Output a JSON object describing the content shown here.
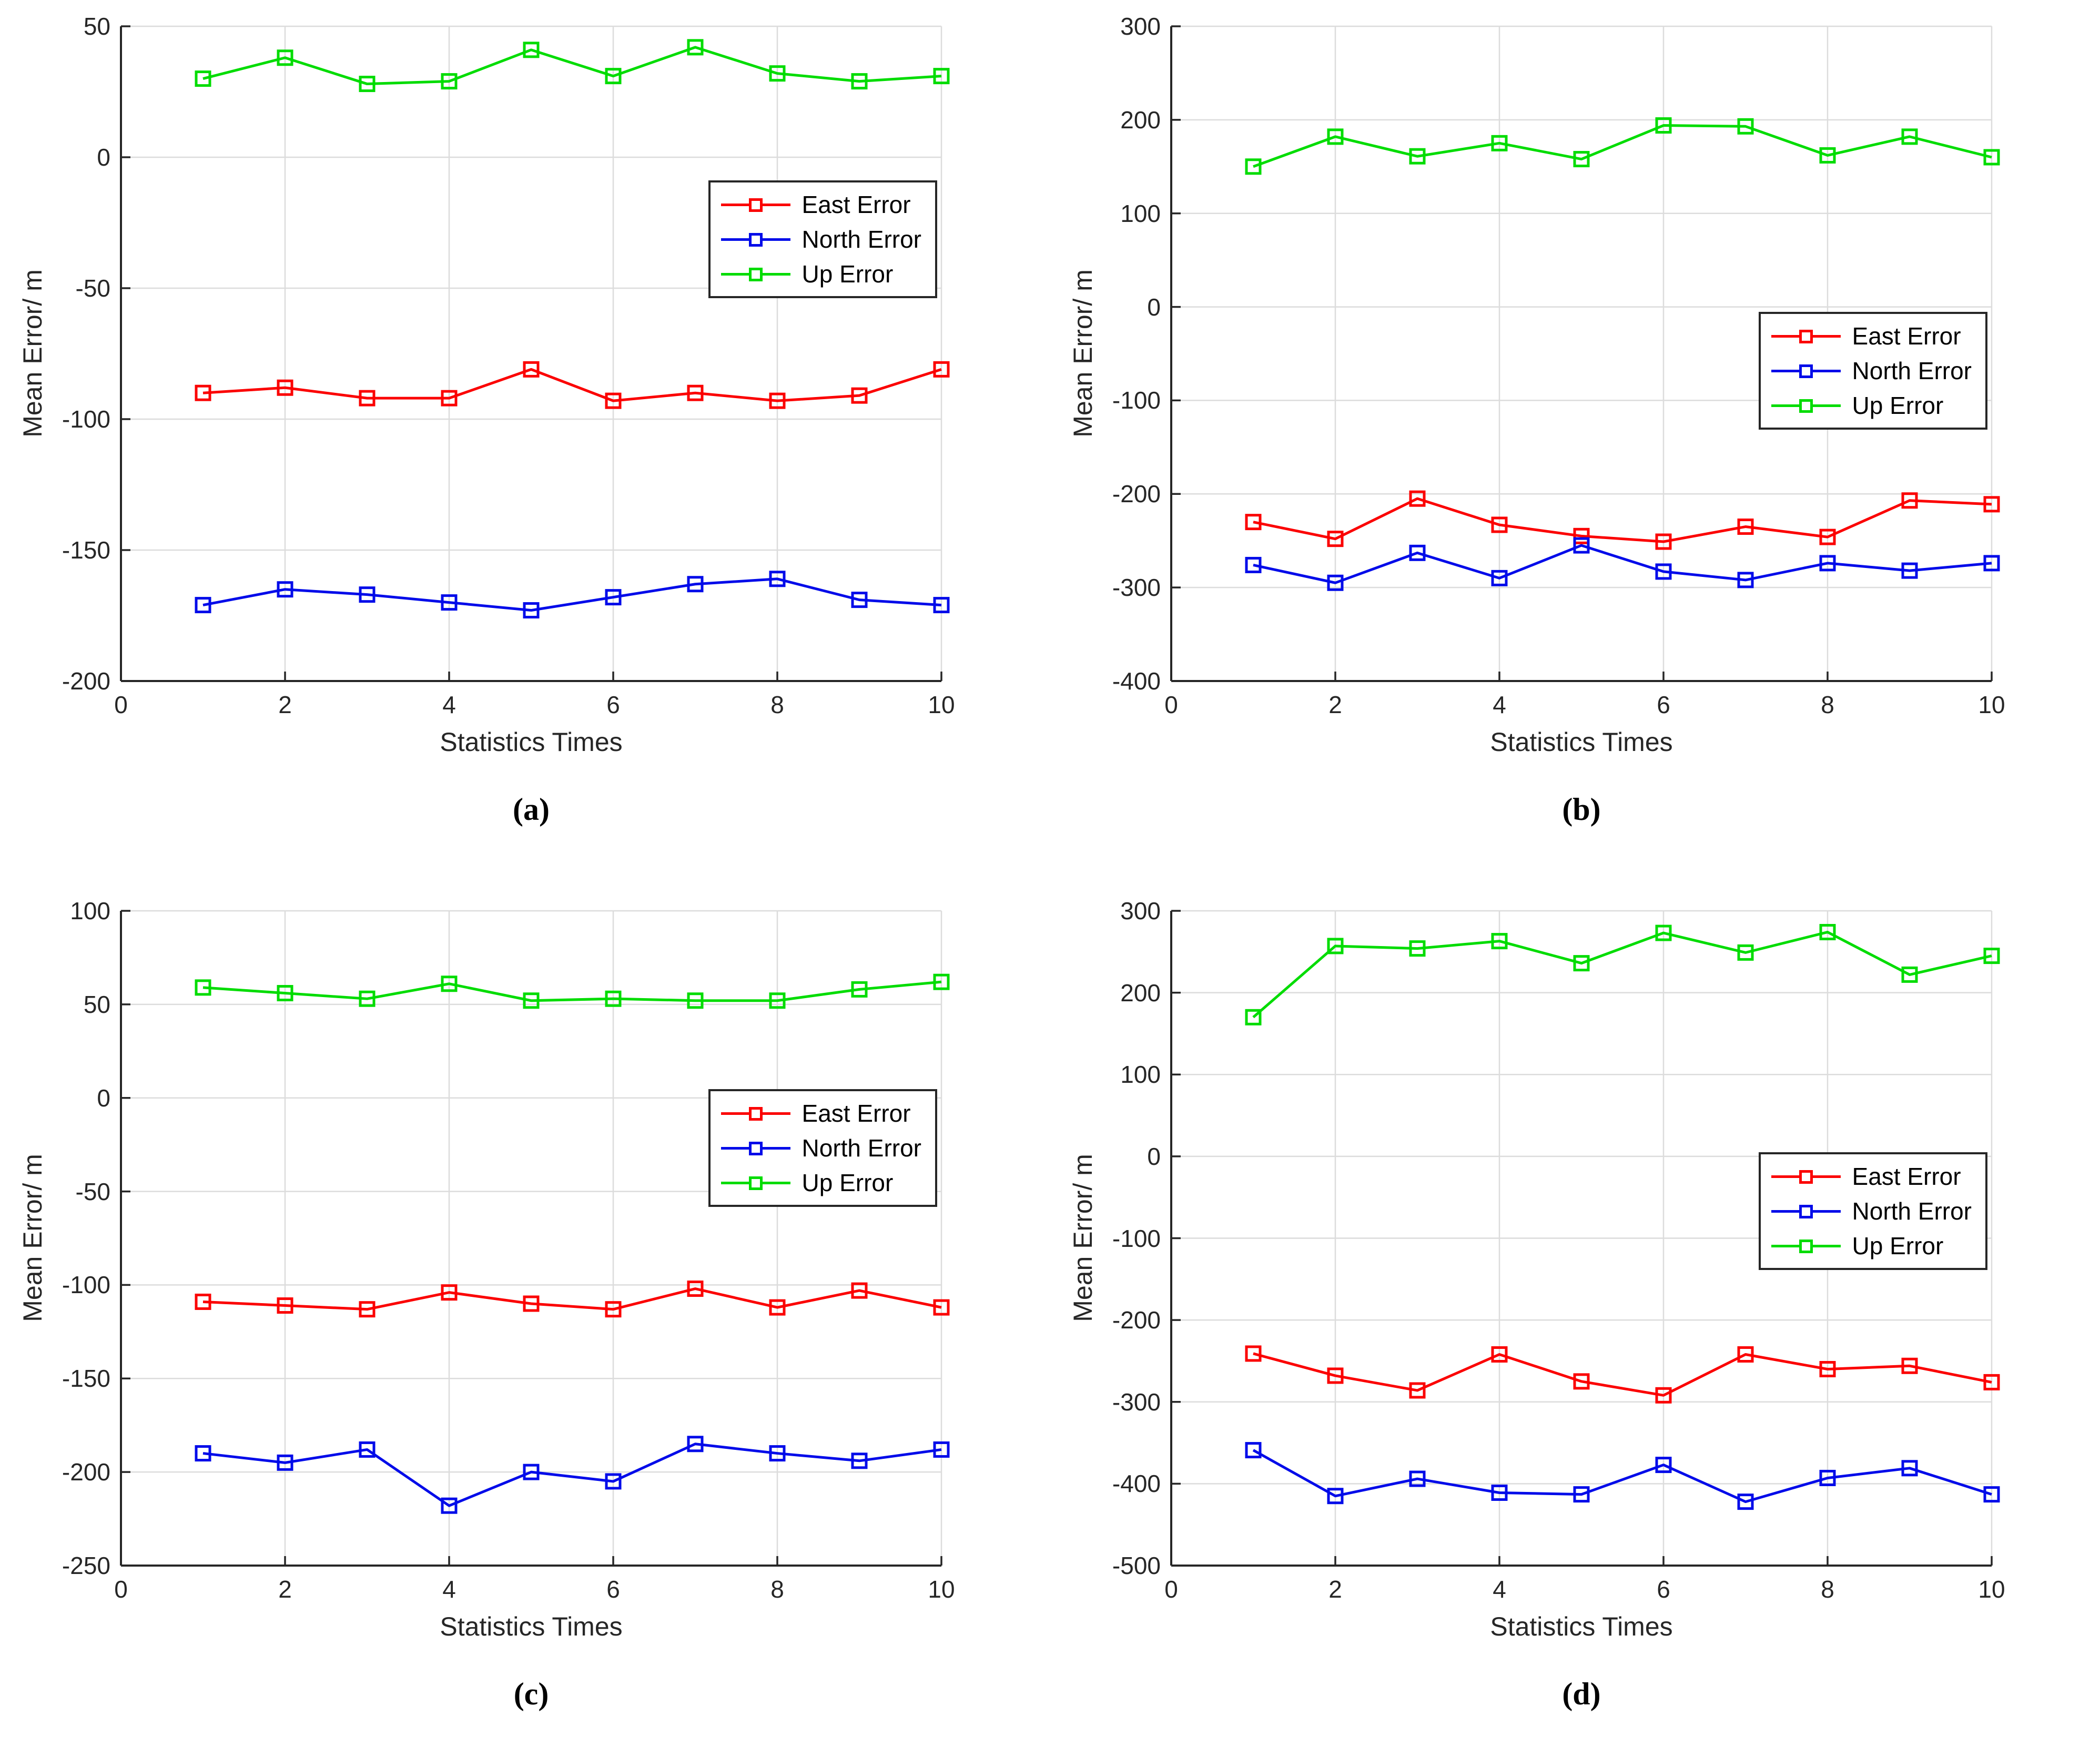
{
  "figure": {
    "xlabel": "Statistics Times",
    "ylabel": "Mean Error/ m",
    "legend": {
      "east": "East Error",
      "north": "North Error",
      "up": "Up Error"
    },
    "colors": {
      "east": "#fb0000",
      "north": "#000be9",
      "up": "#00dc00",
      "grid": "#dcdcdc",
      "axis": "#262626"
    }
  },
  "chart_data": [
    {
      "type": "line",
      "caption": "(a)",
      "xlabel": "Statistics Times",
      "ylabel": "Mean Error/ m",
      "x": [
        1,
        2,
        3,
        4,
        5,
        6,
        7,
        8,
        9,
        10
      ],
      "series": [
        {
          "name": "East Error",
          "color_key": "east",
          "values": [
            -90,
            -88,
            -92,
            -92,
            -81,
            -93,
            -90,
            -93,
            -91,
            -81
          ]
        },
        {
          "name": "North Error",
          "color_key": "north",
          "values": [
            -171,
            -165,
            -167,
            -170,
            -173,
            -168,
            -163,
            -161,
            -169,
            -171
          ]
        },
        {
          "name": "Up Error",
          "color_key": "up",
          "values": [
            30,
            38,
            28,
            29,
            41,
            31,
            42,
            32,
            29,
            31
          ]
        }
      ],
      "xlim": [
        0,
        10
      ],
      "ylim": [
        -200,
        50
      ],
      "xticks": [
        0,
        2,
        4,
        6,
        8,
        10
      ],
      "yticks": [
        50,
        0,
        -50,
        -100,
        -150,
        -200
      ],
      "grid": true,
      "legend_position": "right",
      "legend_top_frac": 0.235
    },
    {
      "type": "line",
      "caption": "(b)",
      "xlabel": "Statistics Times",
      "ylabel": "Mean Error/ m",
      "x": [
        1,
        2,
        3,
        4,
        5,
        6,
        7,
        8,
        9,
        10
      ],
      "series": [
        {
          "name": "East Error",
          "color_key": "east",
          "values": [
            -230,
            -248,
            -205,
            -233,
            -245,
            -251,
            -235,
            -246,
            -207,
            -211
          ]
        },
        {
          "name": "North Error",
          "color_key": "north",
          "values": [
            -276,
            -295,
            -263,
            -290,
            -255,
            -283,
            -292,
            -274,
            -282,
            -274
          ]
        },
        {
          "name": "Up Error",
          "color_key": "up",
          "values": [
            150,
            182,
            161,
            175,
            158,
            194,
            193,
            162,
            182,
            160
          ]
        }
      ],
      "xlim": [
        0,
        10
      ],
      "ylim": [
        -400,
        300
      ],
      "xticks": [
        0,
        2,
        4,
        6,
        8,
        10
      ],
      "yticks": [
        300,
        200,
        100,
        0,
        -100,
        -200,
        -300,
        -400
      ],
      "grid": true,
      "legend_position": "right",
      "legend_top_frac": 0.436
    },
    {
      "type": "line",
      "caption": "(c)",
      "xlabel": "Statistics Times",
      "ylabel": "Mean Error/ m",
      "x": [
        1,
        2,
        3,
        4,
        5,
        6,
        7,
        8,
        9,
        10
      ],
      "series": [
        {
          "name": "East Error",
          "color_key": "east",
          "values": [
            -109,
            -111,
            -113,
            -104,
            -110,
            -113,
            -102,
            -112,
            -103,
            -112
          ]
        },
        {
          "name": "North Error",
          "color_key": "north",
          "values": [
            -190,
            -195,
            -188,
            -218,
            -200,
            -205,
            -185,
            -190,
            -194,
            -188
          ]
        },
        {
          "name": "Up Error",
          "color_key": "up",
          "values": [
            59,
            56,
            53,
            61,
            52,
            53,
            52,
            52,
            58,
            62
          ]
        }
      ],
      "xlim": [
        0,
        10
      ],
      "ylim": [
        -250,
        100
      ],
      "xticks": [
        0,
        2,
        4,
        6,
        8,
        10
      ],
      "yticks": [
        100,
        50,
        0,
        -50,
        -100,
        -150,
        -200,
        -250
      ],
      "grid": true,
      "legend_position": "right",
      "legend_top_frac": 0.272
    },
    {
      "type": "line",
      "caption": "(d)",
      "xlabel": "Statistics Times",
      "ylabel": "Mean Error/ m",
      "x": [
        1,
        2,
        3,
        4,
        5,
        6,
        7,
        8,
        9,
        10
      ],
      "series": [
        {
          "name": "East Error",
          "color_key": "east",
          "values": [
            -241,
            -268,
            -286,
            -242,
            -275,
            -292,
            -242,
            -260,
            -256,
            -276
          ]
        },
        {
          "name": "North Error",
          "color_key": "north",
          "values": [
            -359,
            -415,
            -394,
            -411,
            -413,
            -377,
            -422,
            -393,
            -381,
            -413
          ]
        },
        {
          "name": "Up Error",
          "color_key": "up",
          "values": [
            170,
            257,
            254,
            263,
            236,
            273,
            249,
            274,
            222,
            245
          ]
        }
      ],
      "xlim": [
        0,
        10
      ],
      "ylim": [
        -500,
        300
      ],
      "xticks": [
        0,
        2,
        4,
        6,
        8,
        10
      ],
      "yticks": [
        300,
        200,
        100,
        0,
        -100,
        -200,
        -300,
        -400,
        -500
      ],
      "grid": true,
      "legend_position": "right",
      "legend_top_frac": 0.369
    }
  ]
}
